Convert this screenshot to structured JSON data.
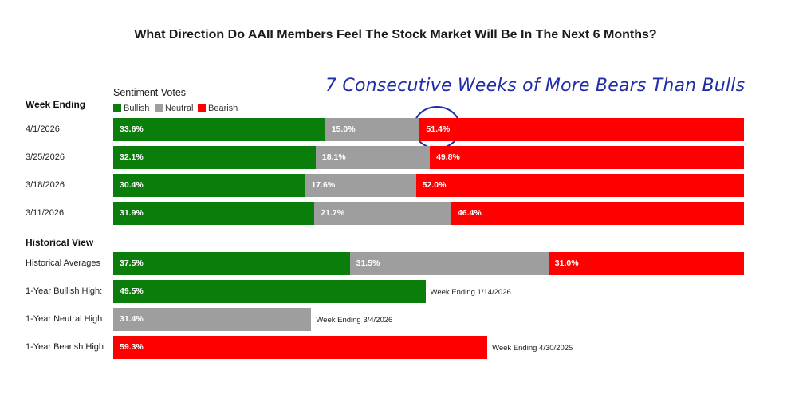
{
  "colors": {
    "bullish": "#0a7d0a",
    "neutral": "#9e9e9e",
    "bearish": "#fe0000",
    "annotation": "#1f2ea8"
  },
  "chart_data": {
    "type": "bar",
    "orientation": "horizontal-stacked",
    "title": "What Direction Do AAII Members Feel The Stock Market Will Be In The Next 6 Months?",
    "annotation": "7 Consecutive Weeks of More Bears Than Bulls",
    "legend_title": "Sentiment Votes",
    "legend": [
      "Bullish",
      "Neutral",
      "Bearish"
    ],
    "legend_position": "top-left",
    "sections": {
      "weekly": {
        "label": "Week Ending",
        "rows": [
          {
            "label": "4/1/2026",
            "bullish": 33.6,
            "neutral": 15.0,
            "bearish": 51.4,
            "bullish_label": "33.6%",
            "neutral_label": "15.0%",
            "bearish_label": "51.4%"
          },
          {
            "label": "3/25/2026",
            "bullish": 32.1,
            "neutral": 18.1,
            "bearish": 49.8,
            "bullish_label": "32.1%",
            "neutral_label": "18.1%",
            "bearish_label": "49.8%"
          },
          {
            "label": "3/18/2026",
            "bullish": 30.4,
            "neutral": 17.6,
            "bearish": 52.0,
            "bullish_label": "30.4%",
            "neutral_label": "17.6%",
            "bearish_label": "52.0%"
          },
          {
            "label": "3/11/2026",
            "bullish": 31.9,
            "neutral": 21.7,
            "bearish": 46.4,
            "bullish_label": "31.9%",
            "neutral_label": "21.7%",
            "bearish_label": "46.4%"
          }
        ]
      },
      "historical": {
        "label": "Historical View",
        "averages": {
          "label": "Historical Averages",
          "bullish": 37.5,
          "neutral": 31.5,
          "bearish": 31.0,
          "bullish_label": "37.5%",
          "neutral_label": "31.5%",
          "bearish_label": "31.0%"
        },
        "highs": [
          {
            "label": "1-Year Bullish High:",
            "type": "bullish",
            "value": 49.5,
            "value_label": "49.5%",
            "note": "Week Ending 1/14/2026"
          },
          {
            "label": "1-Year Neutral High",
            "type": "neutral",
            "value": 31.4,
            "value_label": "31.4%",
            "note": "Week Ending 3/4/2026"
          },
          {
            "label": "1-Year Bearish High",
            "type": "bearish",
            "value": 59.3,
            "value_label": "59.3%",
            "note": "Week Ending 4/30/2025"
          }
        ]
      }
    }
  }
}
